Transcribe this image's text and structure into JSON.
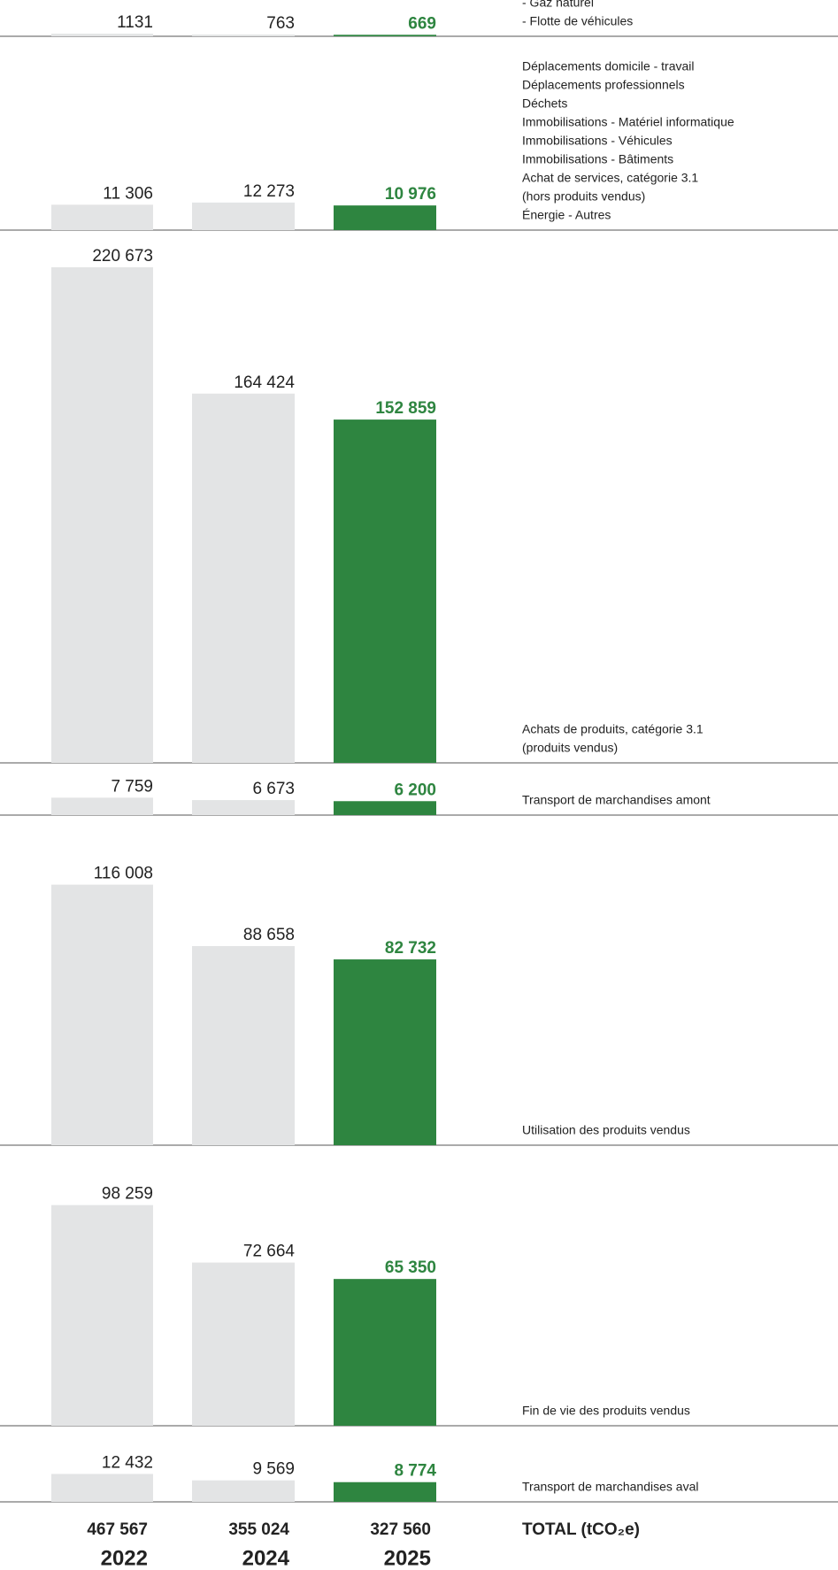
{
  "chart_data": {
    "type": "bar",
    "categories": [
      [
        "- Gaz naturel",
        "- Flotte de véhicules"
      ],
      [
        "Déplacements domicile - travail",
        "Déplacements professionnels",
        "Déchets",
        "Immobilisations - Matériel informatique",
        "Immobilisations - Véhicules",
        "Immobilisations - Bâtiments",
        "Achat de services, catégorie 3.1",
        "(hors produits vendus)",
        "Énergie - Autres"
      ],
      [
        "Achats de produits, catégorie 3.1",
        "(produits vendus)"
      ],
      [
        "Transport de marchandises amont"
      ],
      [
        "Utilisation des produits vendus"
      ],
      [
        "Fin de vie des produits vendus"
      ],
      [
        "Transport de marchandises aval"
      ]
    ],
    "series": [
      {
        "name": "2022",
        "color": "#e3e4e5",
        "values": [
          1131,
          11306,
          220673,
          7759,
          116008,
          98259,
          12432
        ],
        "value_labels": [
          "1131",
          "11 306",
          "220 673",
          "7 759",
          "116 008",
          "98 259",
          "12 432"
        ],
        "total": 467567,
        "total_label": "467 567"
      },
      {
        "name": "2024",
        "color": "#e3e4e5",
        "values": [
          763,
          12273,
          164424,
          6673,
          88658,
          72664,
          9569
        ],
        "value_labels": [
          "763",
          "12 273",
          "164 424",
          "6 673",
          "88 658",
          "72 664",
          "9 569"
        ],
        "total": 355024,
        "total_label": "355 024"
      },
      {
        "name": "2025",
        "color": "#2e8540",
        "values": [
          669,
          10976,
          152859,
          6200,
          82732,
          65350,
          8774
        ],
        "value_labels": [
          "669",
          "10 976",
          "152 859",
          "6 200",
          "82 732",
          "65 350",
          "8 774"
        ],
        "total": 327560,
        "total_label": "327 560"
      }
    ],
    "total_title": "TOTAL (tCO₂e)"
  }
}
